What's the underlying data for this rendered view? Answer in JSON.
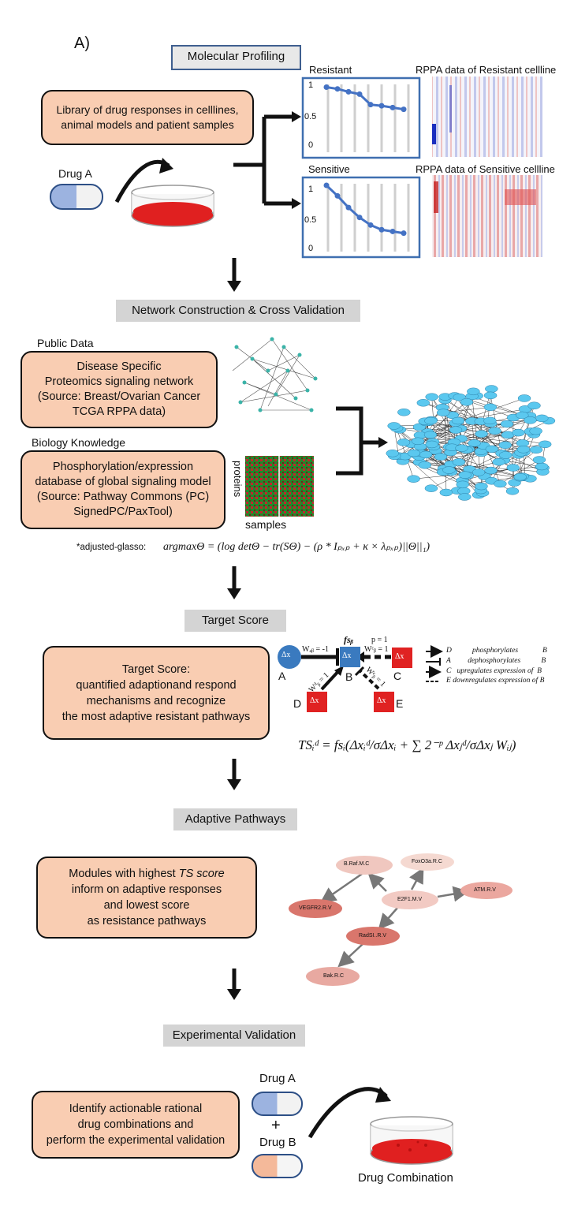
{
  "panel_label": "A)",
  "profiling": {
    "header": "Molecular Profiling",
    "library_text": [
      "Library of drug responses in celllines,",
      "animal models and patient samples"
    ],
    "drug_label": "Drug A",
    "resistant": {
      "title": "Resistant",
      "y_ticks": [
        "1",
        "0.5",
        "0"
      ],
      "values": [
        0.98,
        0.95,
        0.9,
        0.86,
        0.68,
        0.66,
        0.63,
        0.6
      ]
    },
    "sensitive": {
      "title": "Sensitive",
      "y_ticks": [
        "1",
        "0.5",
        "0"
      ],
      "values": [
        1.0,
        0.82,
        0.62,
        0.45,
        0.32,
        0.24,
        0.21,
        0.18
      ]
    },
    "rppa_resistant_title": "RPPA data of Resistant cellline",
    "rppa_sensitive_title": "RPPA data of Sensitive cellline"
  },
  "network": {
    "header": "Network Construction & Cross Validation",
    "public_label": "Public Data",
    "public_text": [
      "Disease Specific",
      "Proteomics signaling network",
      "(Source: Breast/Ovarian Cancer",
      "TCGA RPPA data)"
    ],
    "bio_label": "Biology Knowledge",
    "bio_text": [
      "Phosphorylation/expression",
      "database of global signaling model",
      "(Source: Pathway Commons (PC)",
      "SignedPC/PaxTool)"
    ],
    "heatmap_y": "proteins",
    "heatmap_x": "samples",
    "glasso_label": "*adjusted-glasso:",
    "glasso_formula": "argmaxΘ = (log detΘ − tr(SΘ) − (ρ * Iₚₓₚ + κ × λₚₓₚ)||Θ||₁)"
  },
  "target": {
    "header": "Target Score",
    "text": [
      "Target Score:",
      "quantified adaptionand respond",
      "mechanisms and recognize",
      "the most adaptive resistant pathways"
    ],
    "nodes": {
      "A": "A",
      "B": "B",
      "C": "C",
      "D": "D",
      "E": "E"
    },
    "edges": {
      "wab": "Wₐᵦ = -1",
      "wcb": "Wᶜᵦ = 1",
      "wdb": "Wᵈᵦ = 1",
      "web": "Wᵉᵦ = 1",
      "p": "p = 1",
      "fs": "fsᵦ"
    },
    "node_text": {
      "dx": "Δx"
    },
    "legend": [
      {
        "code": "D",
        "text": "phosphorylates",
        "target": "B"
      },
      {
        "code": "A",
        "text": "dephosphorylates",
        "target": "B"
      },
      {
        "code": "C",
        "text": "upregulates expression of",
        "target": "B"
      },
      {
        "code": "E",
        "text": "downregulates expression of",
        "target": "B"
      }
    ],
    "formula": "TSᵢᵈ = fsᵢ(Δxᵢᵈ/σΔxᵢ + ∑ 2⁻ᵖ Δxⱼᵈ/σΔxⱼ Wᵢⱼ)"
  },
  "adaptive": {
    "header": "Adaptive Pathways",
    "text_lines": [
      "Modules with highest",
      "inform on adaptive responses",
      "and lowest score",
      "as resistance pathways"
    ],
    "ts_score": "TS score",
    "pathway_nodes": [
      "B.Raf.M.C",
      "FoxO3a.R.C",
      "E2F1.M.V",
      "ATM.R.V",
      "VEGFR2.R.V",
      "RadSI..R.V",
      "Bak.R.C"
    ]
  },
  "validation": {
    "header": "Experimental Validation",
    "text": [
      "Identify actionable rational",
      "drug combinations and",
      "perform the experimental validation"
    ],
    "drug_a": "Drug A",
    "plus": "+",
    "drug_b": "Drug B",
    "combination": "Drug Combination"
  },
  "colors": {
    "peach": "#f9cdb2",
    "header_gray": "#d4d4d4",
    "blue_line": "#4472c4",
    "node_blue": "#5bc8ef",
    "dish_red": "#e02020"
  }
}
